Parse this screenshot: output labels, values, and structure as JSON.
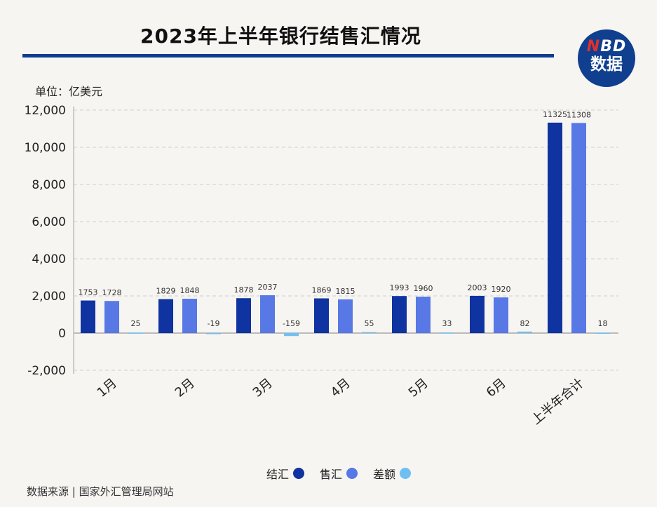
{
  "header": {
    "title": "2023年上半年银行结售汇情况"
  },
  "logo": {
    "line1_prefix": "N",
    "line1_rest": "BD",
    "line2": "数据"
  },
  "unit_label": "单位：亿美元",
  "source_label": "数据来源 | 国家外汇管理局网站",
  "colors": {
    "settlement": "#0f33a0",
    "sale": "#5878e6",
    "difference": "#6fc0f2",
    "title_rule": "#0e3d8f"
  },
  "chart_data": {
    "type": "bar",
    "title": "2023年上半年银行结售汇情况",
    "ylabel": "单位：亿美元",
    "ylim": [
      -2000,
      12000
    ],
    "yticks": [
      "12,000",
      "10,000",
      "8,000",
      "6,000",
      "4,000",
      "2,000",
      "0",
      "-2,000"
    ],
    "categories": [
      "1月",
      "2月",
      "3月",
      "4月",
      "5月",
      "6月",
      "上半年合计"
    ],
    "legend_position": "bottom",
    "grid": true,
    "series": [
      {
        "name": "结汇",
        "values": [
          1753,
          1829,
          1878,
          1869,
          1993,
          2003,
          11325
        ]
      },
      {
        "name": "售汇",
        "values": [
          1728,
          1848,
          2037,
          1815,
          1960,
          1920,
          11308
        ]
      },
      {
        "name": "差额",
        "values": [
          25,
          -19,
          -159,
          55,
          33,
          82,
          18
        ]
      }
    ]
  }
}
